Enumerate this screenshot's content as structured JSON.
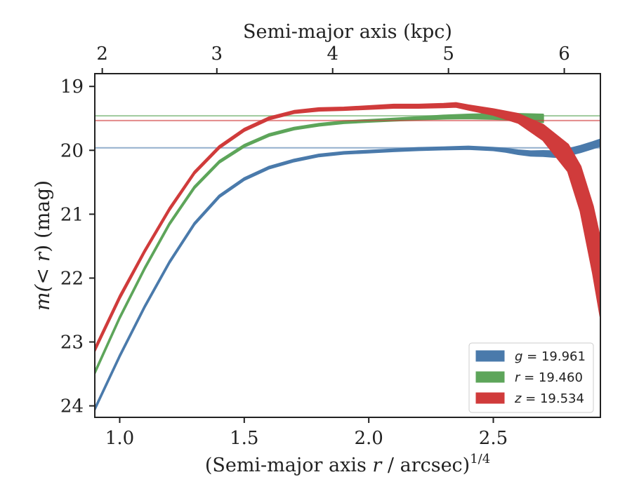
{
  "chart_data": {
    "type": "line",
    "xlabel_main": "(Semi-major axis ",
    "xlabel_var": "r",
    "xlabel_rest": " / arcsec)",
    "xlabel_sup": "1/4",
    "top_xlabel": "Semi-major axis (kpc)",
    "ylabel_pre": "m(",
    "ylabel_var": "< r",
    "ylabel_post": ") (mag)",
    "xlim": [
      0.9,
      2.93
    ],
    "ylim": [
      24.18,
      18.8
    ],
    "y_inverted": true,
    "x_ticks": [
      1.0,
      1.5,
      2.0,
      2.5
    ],
    "x_tick_labels": [
      "1.0",
      "1.5",
      "2.0",
      "2.5"
    ],
    "y_ticks": [
      19,
      20,
      21,
      22,
      23,
      24
    ],
    "y_tick_labels": [
      "19",
      "20",
      "21",
      "22",
      "23",
      "24"
    ],
    "top_ticks_kpc": [
      2,
      3,
      4,
      5,
      6
    ],
    "top_tick_labels": [
      "2",
      "3",
      "4",
      "5",
      "6"
    ],
    "top_tick_x_positions": [
      0.93,
      1.39,
      1.855,
      2.32,
      2.785
    ],
    "legend_placement": "lower-right",
    "grid": false,
    "series": [
      {
        "name": "g",
        "legend_var": "g",
        "legend_value": " = 19.961",
        "color": "#4a7aab",
        "asymptote": 19.961,
        "x": [
          0.9,
          1.0,
          1.1,
          1.2,
          1.3,
          1.4,
          1.5,
          1.6,
          1.7,
          1.8,
          1.9,
          2.0,
          2.1,
          2.2,
          2.3,
          2.4,
          2.5,
          2.55,
          2.6,
          2.65,
          2.7,
          2.75,
          2.8,
          2.85,
          2.9,
          2.93
        ],
        "y": [
          24.05,
          23.22,
          22.45,
          21.75,
          21.15,
          20.72,
          20.45,
          20.27,
          20.16,
          20.08,
          20.04,
          20.02,
          20.0,
          19.98,
          19.97,
          19.96,
          19.98,
          20.0,
          20.03,
          20.05,
          20.05,
          20.06,
          20.03,
          19.98,
          19.92,
          19.88
        ],
        "width": [
          0.03,
          0.03,
          0.03,
          0.03,
          0.03,
          0.03,
          0.03,
          0.03,
          0.03,
          0.03,
          0.03,
          0.03,
          0.03,
          0.035,
          0.035,
          0.04,
          0.04,
          0.05,
          0.06,
          0.07,
          0.08,
          0.09,
          0.1,
          0.1,
          0.1,
          0.1
        ]
      },
      {
        "name": "r",
        "legend_var": "r",
        "legend_value": " = 19.460",
        "color": "#5da55a",
        "asymptote": 19.46,
        "x": [
          0.9,
          1.0,
          1.1,
          1.2,
          1.3,
          1.4,
          1.5,
          1.6,
          1.7,
          1.8,
          1.9,
          2.0,
          2.1,
          2.2,
          2.3,
          2.4,
          2.5,
          2.6,
          2.7
        ],
        "y": [
          23.48,
          22.62,
          21.85,
          21.15,
          20.58,
          20.18,
          19.93,
          19.76,
          19.66,
          19.6,
          19.56,
          19.54,
          19.52,
          19.5,
          19.48,
          19.47,
          19.47,
          19.48,
          19.5
        ],
        "width": [
          0.03,
          0.03,
          0.03,
          0.03,
          0.03,
          0.03,
          0.03,
          0.03,
          0.03,
          0.03,
          0.03,
          0.03,
          0.035,
          0.04,
          0.05,
          0.06,
          0.08,
          0.1,
          0.12
        ]
      },
      {
        "name": "z",
        "legend_var": "z",
        "legend_value": " = 19.534",
        "color": "#d03b3b",
        "asymptote": 19.534,
        "x": [
          0.9,
          1.0,
          1.1,
          1.2,
          1.3,
          1.4,
          1.5,
          1.6,
          1.7,
          1.8,
          1.9,
          2.0,
          2.1,
          2.2,
          2.3,
          2.35,
          2.4,
          2.5,
          2.6,
          2.7,
          2.8,
          2.85,
          2.9,
          2.93
        ],
        "y": [
          23.12,
          22.3,
          21.58,
          20.92,
          20.35,
          19.95,
          19.68,
          19.5,
          19.4,
          19.36,
          19.35,
          19.33,
          19.31,
          19.31,
          19.3,
          19.29,
          19.33,
          19.4,
          19.5,
          19.72,
          20.12,
          20.6,
          21.4,
          22.0
        ],
        "width": [
          0.05,
          0.05,
          0.04,
          0.04,
          0.035,
          0.035,
          0.035,
          0.035,
          0.035,
          0.04,
          0.04,
          0.045,
          0.05,
          0.05,
          0.055,
          0.06,
          0.07,
          0.09,
          0.14,
          0.24,
          0.42,
          0.7,
          1.05,
          1.2
        ]
      }
    ]
  }
}
